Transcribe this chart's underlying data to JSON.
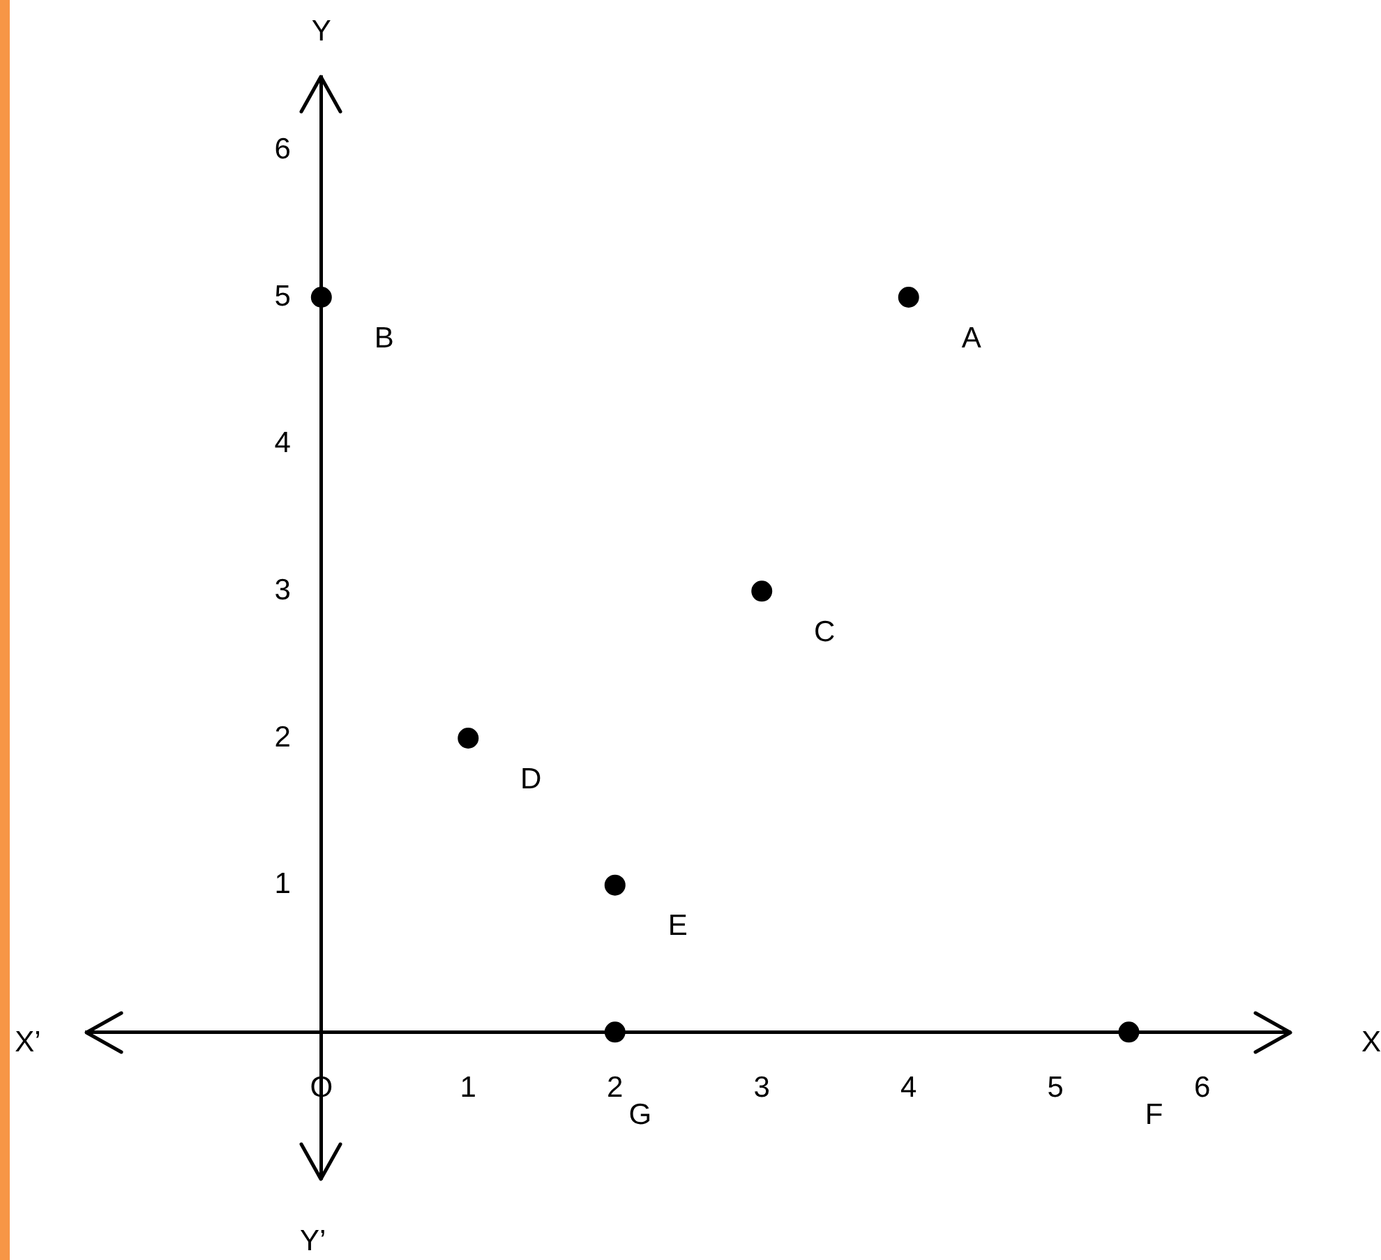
{
  "chart_data": {
    "type": "scatter",
    "xlabel": "X",
    "ylabel": "Y",
    "x": [
      4,
      0,
      3,
      1,
      2,
      2,
      5.5
    ],
    "values": [
      5,
      5,
      3,
      2,
      1,
      0,
      0
    ],
    "color": "#000000",
    "marker": "circle",
    "grid": false,
    "xlim": [
      -1.6,
      6.6
    ],
    "ylim": [
      -1,
      6.5
    ],
    "xticks": [
      {
        "value": 0,
        "label": "O"
      },
      1,
      2,
      3,
      4,
      5,
      6
    ],
    "yticks": [
      1,
      2,
      3,
      4,
      5,
      6
    ],
    "annotations": [
      {
        "text": "A",
        "x": 4,
        "y": 5
      },
      {
        "text": "B",
        "x": 0,
        "y": 5
      },
      {
        "text": "C",
        "x": 3,
        "y": 3
      },
      {
        "text": "D",
        "x": 1,
        "y": 2
      },
      {
        "text": "E",
        "x": 2,
        "y": 1
      },
      {
        "text": "G",
        "x": 2,
        "y": 0
      },
      {
        "text": "F",
        "x": 5.5,
        "y": 0
      },
      "X’",
      "Y’"
    ]
  }
}
